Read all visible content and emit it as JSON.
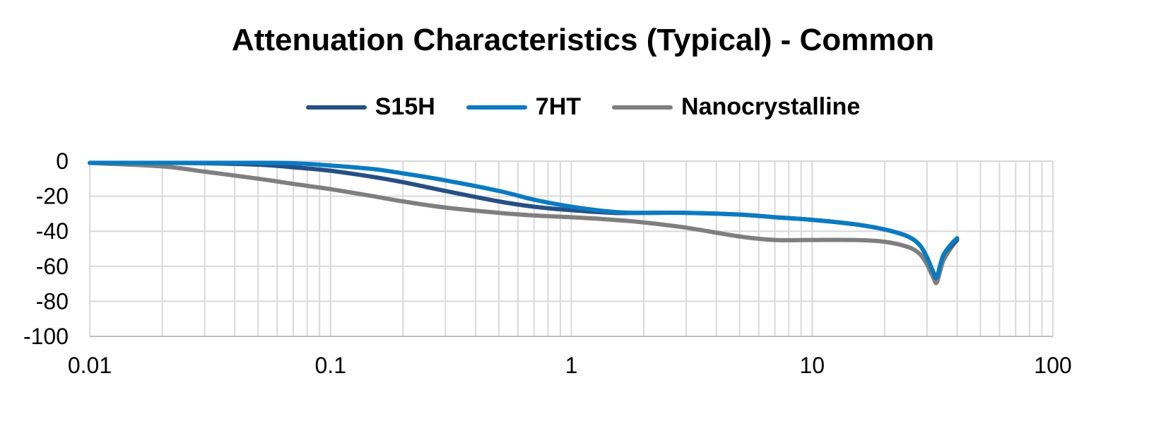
{
  "chart_data": {
    "type": "line",
    "title": "Attenuation Characteristics (Typical) - Common",
    "xlabel": "",
    "ylabel": "",
    "x_scale": "log",
    "xlim": [
      0.01,
      100
    ],
    "ylim": [
      -100,
      0
    ],
    "x_ticks": [
      "0.01",
      "0.1",
      "1",
      "10",
      "100"
    ],
    "y_ticks": [
      "0",
      "-20",
      "-40",
      "-60",
      "-80",
      "-100"
    ],
    "y_tick_values": [
      0,
      -20,
      -40,
      -60,
      -80,
      -100
    ],
    "x_tick_values": [
      0.01,
      0.1,
      1,
      10,
      100
    ],
    "grid": true,
    "legend_position": "top",
    "series": [
      {
        "name": "S15H",
        "color": "#264f85",
        "x": [
          0.01,
          0.02,
          0.03,
          0.05,
          0.07,
          0.1,
          0.15,
          0.2,
          0.3,
          0.5,
          0.7,
          1,
          1.5,
          2,
          3,
          5,
          7,
          10,
          15,
          20,
          25,
          28,
          30,
          32,
          33,
          35,
          38,
          40
        ],
        "y": [
          -1,
          -1,
          -1.2,
          -2,
          -3.5,
          -5.5,
          -9,
          -12,
          -17,
          -23,
          -26,
          -28,
          -29.5,
          -29.5,
          -29.5,
          -30.5,
          -32,
          -33.5,
          -36,
          -39,
          -43,
          -48,
          -55,
          -64,
          -66,
          -54,
          -48,
          -45
        ]
      },
      {
        "name": "7HT",
        "color": "#0a7bc1",
        "x": [
          0.01,
          0.02,
          0.03,
          0.05,
          0.07,
          0.1,
          0.15,
          0.2,
          0.3,
          0.5,
          0.7,
          1,
          1.5,
          2,
          3,
          5,
          7,
          10,
          15,
          20,
          25,
          28,
          30,
          32,
          33,
          35,
          38,
          40
        ],
        "y": [
          -1,
          -1,
          -1,
          -1,
          -1.2,
          -2.5,
          -4.5,
          -7,
          -11,
          -17,
          -22,
          -26,
          -29,
          -29.5,
          -29.5,
          -30.5,
          -32,
          -33.5,
          -36,
          -39,
          -43,
          -48,
          -55,
          -64,
          -66,
          -54,
          -47,
          -44
        ]
      },
      {
        "name": "Nanocrystalline",
        "color": "#7f7f7f",
        "x": [
          0.01,
          0.02,
          0.03,
          0.05,
          0.07,
          0.1,
          0.15,
          0.2,
          0.3,
          0.5,
          0.7,
          1,
          1.5,
          2,
          3,
          5,
          7,
          10,
          15,
          20,
          25,
          28,
          30,
          32,
          33,
          35,
          38,
          40
        ],
        "y": [
          -1,
          -3,
          -6,
          -10,
          -13,
          -16,
          -20,
          -23,
          -26.5,
          -29.5,
          -31,
          -32,
          -33.5,
          -35,
          -38,
          -43,
          -45,
          -45,
          -45,
          -46,
          -49,
          -53,
          -59,
          -67,
          -69,
          -57,
          -49,
          -45
        ]
      }
    ]
  }
}
